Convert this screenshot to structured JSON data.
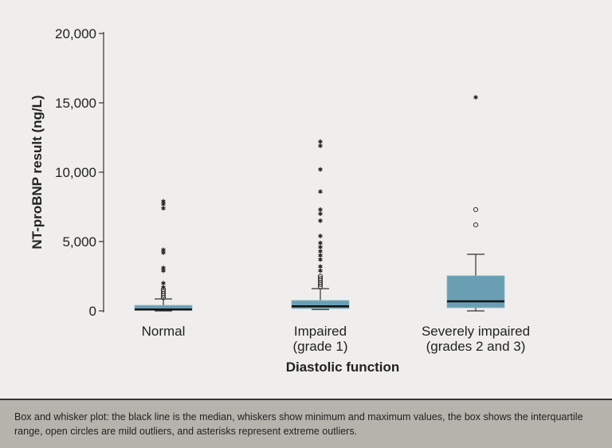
{
  "chart_data": {
    "type": "boxplot",
    "xlabel": "Diastolic function",
    "ylabel": "NT-proBNP result (ng/L)",
    "ylim": [
      0,
      20000
    ],
    "yticks": [
      0,
      5000,
      10000,
      15000,
      20000
    ],
    "ytick_labels": [
      "0",
      "5,000",
      "10,000",
      "15,000",
      "20,000"
    ],
    "grid": false,
    "box_color": "#6a9fb3",
    "categories": [
      {
        "label_lines": [
          "Normal"
        ],
        "whisker_low": 0,
        "q1": 50,
        "median": 100,
        "q3": 400,
        "whisker_high": 860,
        "mild_outliers": [
          950,
          1100,
          1250,
          1400,
          1550
        ],
        "extreme_outliers": [
          1700,
          2000,
          2900,
          3100,
          4200,
          4400,
          7400,
          7700,
          7900
        ]
      },
      {
        "label_lines": [
          "Impaired",
          "(grade 1)"
        ],
        "whisker_low": 100,
        "q1": 170,
        "median": 330,
        "q3": 750,
        "whisker_high": 1600,
        "mild_outliers": [
          1750,
          1900,
          2050,
          2200,
          2350,
          2500
        ],
        "extreme_outliers": [
          2900,
          3200,
          3700,
          4000,
          4300,
          4600,
          4900,
          5400,
          6500,
          7000,
          7300,
          8600,
          10200,
          11900,
          12200
        ]
      },
      {
        "label_lines": [
          "Severely impaired",
          "(grades 2 and 3)"
        ],
        "whisker_low": 0,
        "q1": 230,
        "median": 690,
        "q3": 2530,
        "whisker_high": 4080,
        "mild_outliers": [
          6200,
          7300
        ],
        "extreme_outliers": [
          15400
        ]
      }
    ]
  },
  "caption": "Box and whisker plot: the black line is the median, whiskers show minimum and maximum values, the box shows the interquartile range, open circles are mild outliers, and asterisks represent extreme outliers."
}
